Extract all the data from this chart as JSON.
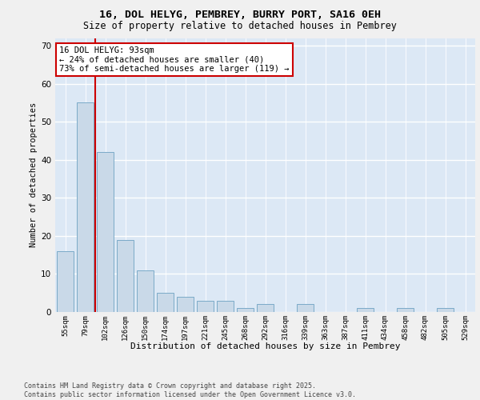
{
  "title1": "16, DOL HELYG, PEMBREY, BURRY PORT, SA16 0EH",
  "title2": "Size of property relative to detached houses in Pembrey",
  "xlabel": "Distribution of detached houses by size in Pembrey",
  "ylabel": "Number of detached properties",
  "bar_color": "#c9d9e8",
  "bar_edge_color": "#7baac8",
  "background_color": "#dce8f5",
  "grid_color": "#ffffff",
  "vline_color": "#cc0000",
  "vline_x_index": 1,
  "annotation_title": "16 DOL HELYG: 93sqm",
  "annotation_line1": "← 24% of detached houses are smaller (40)",
  "annotation_line2": "73% of semi-detached houses are larger (119) →",
  "annotation_box_color": "#ffffff",
  "annotation_box_edge": "#cc0000",
  "categories": [
    "55sqm",
    "79sqm",
    "102sqm",
    "126sqm",
    "150sqm",
    "174sqm",
    "197sqm",
    "221sqm",
    "245sqm",
    "268sqm",
    "292sqm",
    "316sqm",
    "339sqm",
    "363sqm",
    "387sqm",
    "411sqm",
    "434sqm",
    "458sqm",
    "482sqm",
    "505sqm",
    "529sqm"
  ],
  "values": [
    16,
    55,
    42,
    19,
    11,
    5,
    4,
    3,
    3,
    1,
    2,
    0,
    2,
    0,
    0,
    1,
    0,
    1,
    0,
    1,
    0
  ],
  "ylim": [
    0,
    72
  ],
  "yticks": [
    0,
    10,
    20,
    30,
    40,
    50,
    60,
    70
  ],
  "footer_line1": "Contains HM Land Registry data © Crown copyright and database right 2025.",
  "footer_line2": "Contains public sector information licensed under the Open Government Licence v3.0.",
  "fig_bg": "#f0f0f0"
}
